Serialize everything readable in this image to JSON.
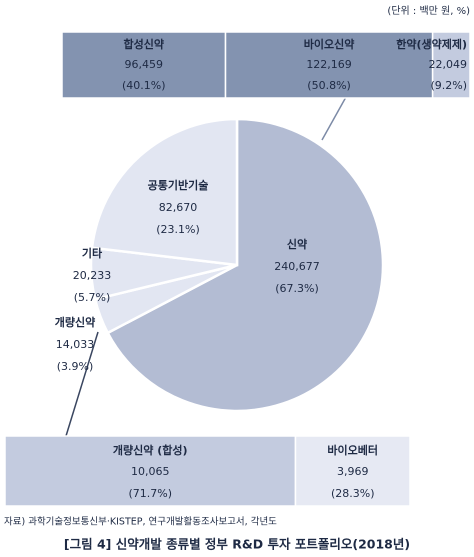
{
  "chart_data": {
    "type": "pie",
    "title": "[그림 4] 신약개발 종류별 정부 R&D 투자 포트폴리오(2018년)",
    "unit_note": "(단위 : 백만 원, %)",
    "source": "자료) 과학기술정보통신부·KISTEP, 연구개발활동조사보고서, 각년도",
    "categories": [
      "신약",
      "개량신약",
      "기타",
      "공통기반기술"
    ],
    "values": [
      240677,
      14033,
      20233,
      82670
    ],
    "value_labels": [
      "240,677",
      "14,033",
      "20,233",
      "82,670"
    ],
    "share_labels": [
      "(67.3%)",
      "(3.9%)",
      "(5.7%)",
      "(23.1%)"
    ],
    "colors": [
      "#b3bcd3",
      "#e2e6f2",
      "#e2e6f2",
      "#e2e6f2"
    ],
    "breakdowns": [
      {
        "categories": [
          "합성신약",
          "바이오신약",
          "한약(생약제제)"
        ],
        "values": [
          96459,
          122169,
          22049
        ],
        "value_labels": [
          "96,459",
          "122,169",
          "22,049"
        ],
        "share_labels": [
          "(40.1%)",
          "(50.8%)",
          "(9.2%)"
        ],
        "colors": [
          "#8393b0",
          "#8393b0",
          "#c3cbdf"
        ]
      },
      {
        "categories": [
          "개량신약 (합성)",
          "바이오베터"
        ],
        "values": [
          10065,
          3969
        ],
        "value_labels": [
          "10,065",
          "3,969"
        ],
        "share_labels": [
          "(71.7%)",
          "(28.3%)"
        ],
        "colors": [
          "#c3cbdf",
          "#e6e9f3"
        ]
      }
    ]
  }
}
